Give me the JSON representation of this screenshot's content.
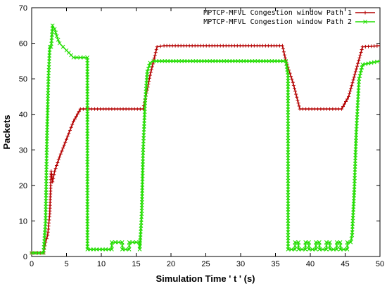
{
  "chart_data": {
    "type": "line",
    "title": "",
    "xlabel": "Simulation Time ' t ' (s)",
    "ylabel": "Packets",
    "xlim": [
      0,
      50
    ],
    "ylim": [
      0,
      70
    ],
    "xticks": [
      0,
      5,
      10,
      15,
      20,
      25,
      30,
      35,
      40,
      45,
      50
    ],
    "yticks": [
      0,
      10,
      20,
      30,
      40,
      50,
      60,
      70
    ],
    "grid": false,
    "legend_position": "top-right",
    "series": [
      {
        "name": "MPTCP-MFVL Congestion window Path 1",
        "color": "#b40000",
        "marker": "plus",
        "x": [
          0,
          1.7,
          2.0,
          2.3,
          2.6,
          2.8,
          3.0,
          3.3,
          4.0,
          5.0,
          6.0,
          7.0,
          16.0,
          16.5,
          17.0,
          17.5,
          18.0,
          19.0,
          36.0,
          36.5,
          37.5,
          38.5,
          44.5,
          45.5,
          46.5,
          47.5,
          50.0
        ],
        "y": [
          1,
          1,
          4,
          6,
          12,
          24,
          21,
          24,
          28,
          33,
          38,
          41.5,
          41.5,
          46,
          51,
          55,
          59,
          59.3,
          59.3,
          55,
          49,
          41.5,
          41.5,
          45,
          52,
          59,
          59.3
        ]
      },
      {
        "name": "MPTCP-MFVL Congestion window Path 2",
        "color": "#22dd00",
        "marker": "x",
        "x": [
          0,
          1.7,
          2.0,
          2.2,
          2.4,
          2.6,
          2.8,
          3.0,
          3.3,
          3.6,
          4.0,
          4.5,
          5.0,
          6.0,
          7.0,
          8.0,
          8.01,
          11.5,
          11.51,
          13.0,
          13.01,
          14.0,
          14.01,
          15.5,
          15.51,
          15.8,
          16.0,
          16.3,
          16.6,
          17.0,
          17.5,
          36.5,
          36.8,
          36.81,
          37.8,
          37.81,
          38.3,
          38.31,
          39.3,
          39.31,
          39.8,
          39.81,
          40.8,
          40.81,
          41.3,
          41.31,
          42.3,
          42.31,
          42.8,
          42.81,
          43.8,
          43.81,
          44.3,
          44.31,
          45.3,
          45.31,
          45.8,
          46.0,
          46.3,
          46.6,
          47.0,
          47.5,
          50.0
        ],
        "y": [
          1,
          1,
          10,
          34,
          50,
          59,
          59,
          65,
          64,
          62,
          60,
          59,
          58,
          56,
          56,
          56,
          2,
          2,
          4,
          4,
          2,
          2,
          4,
          4,
          2,
          12,
          30,
          44,
          52,
          54.5,
          55,
          55,
          51,
          2,
          2,
          4,
          4,
          2,
          2,
          4,
          4,
          2,
          2,
          4,
          4,
          2,
          2,
          4,
          4,
          2,
          2,
          4,
          4,
          2,
          2,
          4,
          4,
          6,
          18,
          35,
          50,
          54,
          55
        ]
      }
    ]
  }
}
